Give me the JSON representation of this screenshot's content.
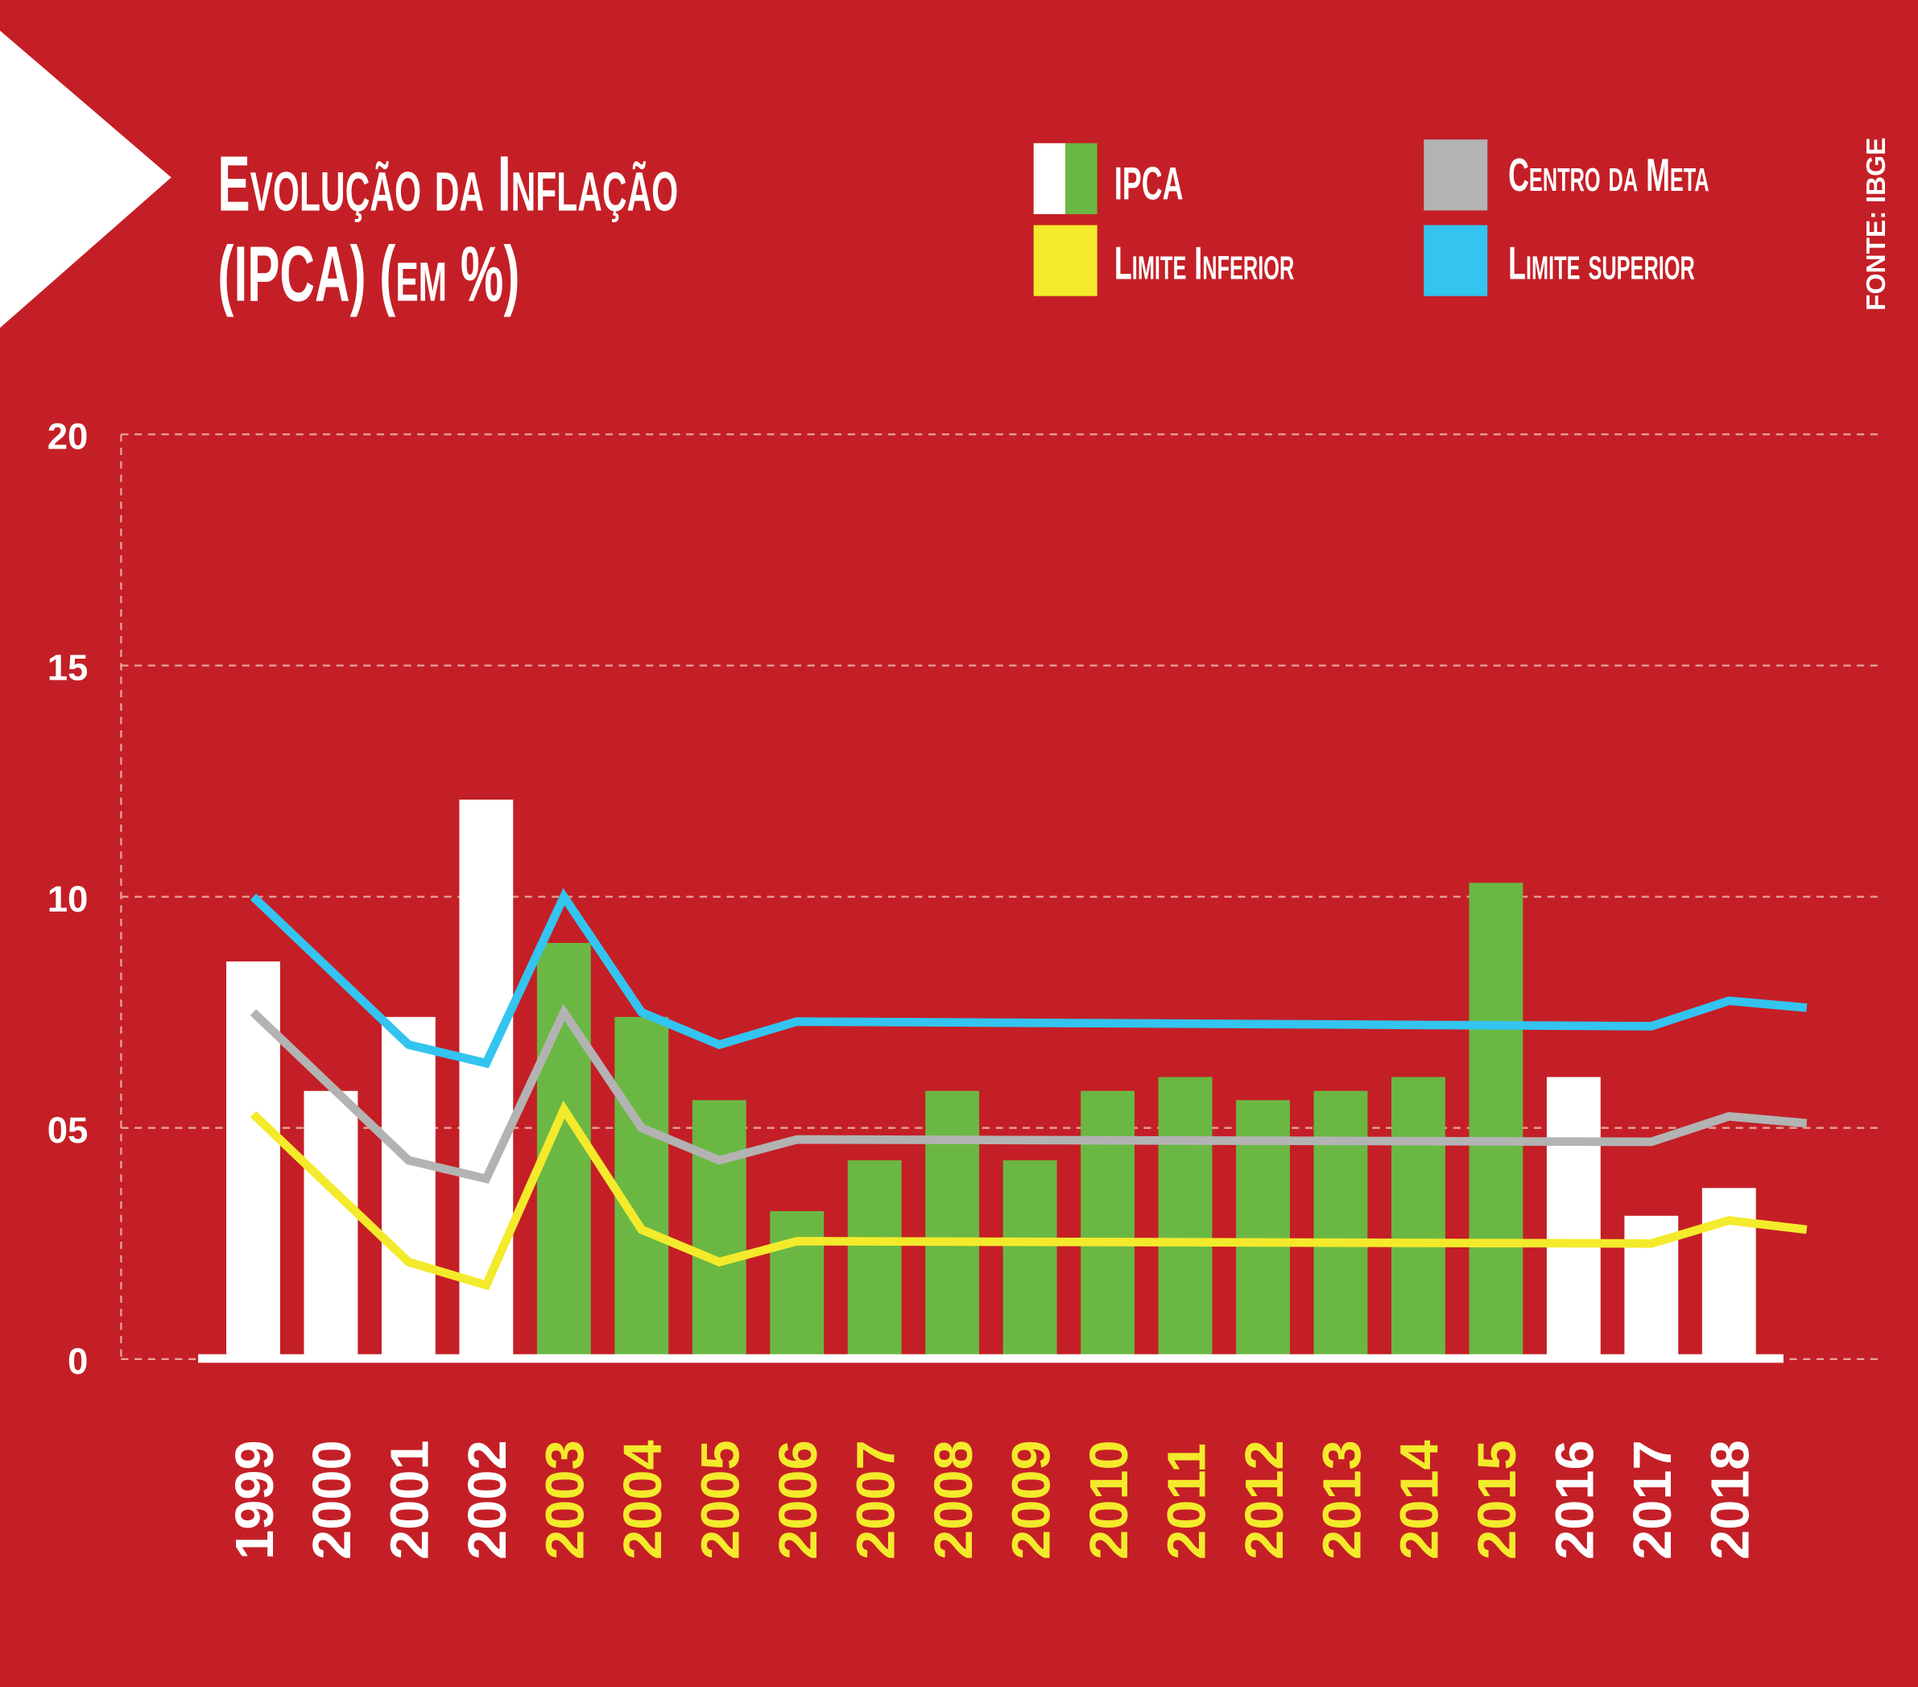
{
  "title_line1": "Evolução da Inflação",
  "title_line2": "(IPCA) (em %)",
  "source": "FONTE: IBGE",
  "colors": {
    "background": "#c41f26",
    "white": "#ffffff",
    "green": "#6ab843",
    "yellow": "#f4ea2c",
    "gray": "#b3b3b3",
    "blue": "#33c4f0",
    "grid": "#e8a39d"
  },
  "legend": [
    {
      "label": "IPCA",
      "colors": [
        "#ffffff",
        "#6ab843"
      ]
    },
    {
      "label": "Centro da Meta",
      "colors": [
        "#b3b3b3"
      ]
    },
    {
      "label": "Limite Inferior",
      "colors": [
        "#f4ea2c"
      ]
    },
    {
      "label": "Limite superior",
      "colors": [
        "#33c4f0"
      ]
    }
  ],
  "chart_data": {
    "type": "bar",
    "title": "Evolução da Inflação (IPCA) (em %)",
    "xlabel": "",
    "ylabel": "",
    "ylim": [
      0,
      20
    ],
    "yticks": [
      {
        "v": 0,
        "label": "0"
      },
      {
        "v": 5,
        "label": "05"
      },
      {
        "v": 10,
        "label": "10"
      },
      {
        "v": 15,
        "label": "15"
      },
      {
        "v": 20,
        "label": "20"
      }
    ],
    "grid": true,
    "categories": [
      "1999",
      "2000",
      "2001",
      "2002",
      "2003",
      "2004",
      "2005",
      "2006",
      "2007",
      "2008",
      "2009",
      "2010",
      "2011",
      "2012",
      "2013",
      "2014",
      "2015",
      "2016",
      "2017",
      "2018"
    ],
    "bar_groups": [
      "white",
      "white",
      "white",
      "white",
      "green",
      "green",
      "green",
      "green",
      "green",
      "green",
      "green",
      "green",
      "green",
      "green",
      "green",
      "green",
      "green",
      "white",
      "white",
      "white"
    ],
    "series": [
      {
        "name": "IPCA",
        "type": "bar",
        "values": [
          8.6,
          5.8,
          7.4,
          12.1,
          9.0,
          7.4,
          5.6,
          3.2,
          4.3,
          5.8,
          4.3,
          5.8,
          6.1,
          5.6,
          5.8,
          6.1,
          10.3,
          6.1,
          3.1,
          3.7
        ]
      },
      {
        "name": "Limite superior",
        "type": "line",
        "color": "#33c4f0",
        "x": [
          1999,
          2001,
          2002,
          2003,
          2004,
          2005,
          2006,
          2017,
          2018,
          2019
        ],
        "values": [
          10.0,
          6.8,
          6.4,
          10.0,
          7.5,
          6.8,
          7.3,
          7.2,
          7.75,
          7.6
        ]
      },
      {
        "name": "Centro da Meta",
        "type": "line",
        "color": "#b3b3b3",
        "x": [
          1999,
          2001,
          2002,
          2003,
          2004,
          2005,
          2006,
          2017,
          2018,
          2019
        ],
        "values": [
          7.5,
          4.3,
          3.9,
          7.5,
          5.0,
          4.3,
          4.75,
          4.7,
          5.25,
          5.1
        ]
      },
      {
        "name": "Limite Inferior",
        "type": "line",
        "color": "#f4ea2c",
        "x": [
          1999,
          2001,
          2002,
          2003,
          2004,
          2005,
          2006,
          2017,
          2018,
          2019
        ],
        "values": [
          5.3,
          2.1,
          1.6,
          5.4,
          2.8,
          2.1,
          2.55,
          2.5,
          3.0,
          2.8
        ]
      }
    ]
  }
}
